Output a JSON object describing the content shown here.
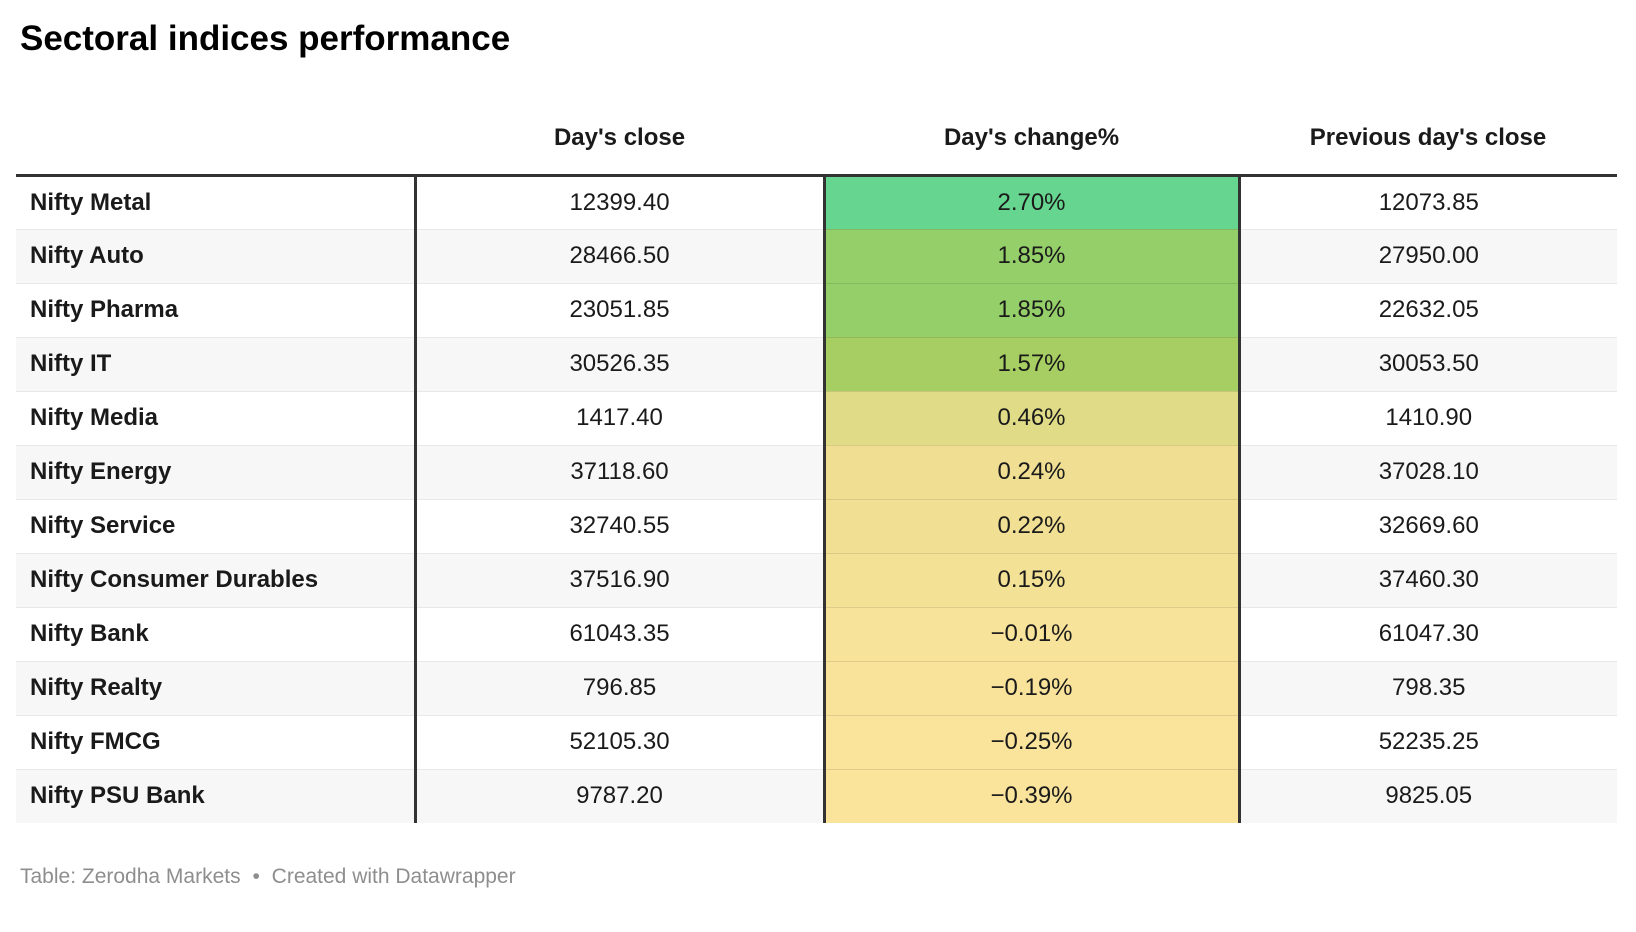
{
  "title": "Sectoral indices performance",
  "table": {
    "headers": [
      "",
      "Day's close",
      "Day's change%",
      "Previous day's close"
    ],
    "rows": [
      {
        "name": "Nifty Metal",
        "close": "12399.40",
        "change": "2.70%",
        "prev": "12073.85",
        "change_bg": "#66d58f"
      },
      {
        "name": "Nifty Auto",
        "close": "28466.50",
        "change": "1.85%",
        "prev": "27950.00",
        "change_bg": "#95cf6a"
      },
      {
        "name": "Nifty Pharma",
        "close": "23051.85",
        "change": "1.85%",
        "prev": "22632.05",
        "change_bg": "#94cf69"
      },
      {
        "name": "Nifty IT",
        "close": "30526.35",
        "change": "1.57%",
        "prev": "30053.50",
        "change_bg": "#a6ce62"
      },
      {
        "name": "Nifty Media",
        "close": "1417.40",
        "change": "0.46%",
        "prev": "1410.90",
        "change_bg": "#dfdb87"
      },
      {
        "name": "Nifty Energy",
        "close": "37118.60",
        "change": "0.24%",
        "prev": "37028.10",
        "change_bg": "#f0df92"
      },
      {
        "name": "Nifty Service",
        "close": "32740.55",
        "change": "0.22%",
        "prev": "32669.60",
        "change_bg": "#f1e094"
      },
      {
        "name": "Nifty Consumer Durables",
        "close": "37516.90",
        "change": "0.15%",
        "prev": "37460.30",
        "change_bg": "#f3e196"
      },
      {
        "name": "Nifty Bank",
        "close": "61043.35",
        "change": "−0.01%",
        "prev": "61047.30",
        "change_bg": "#f8e39a"
      },
      {
        "name": "Nifty Realty",
        "close": "796.85",
        "change": "−0.19%",
        "prev": "798.35",
        "change_bg": "#f9e39b"
      },
      {
        "name": "Nifty FMCG",
        "close": "52105.30",
        "change": "−0.25%",
        "prev": "52235.25",
        "change_bg": "#fae49c"
      },
      {
        "name": "Nifty PSU Bank",
        "close": "9787.20",
        "change": "−0.39%",
        "prev": "9825.05",
        "change_bg": "#fae49c"
      }
    ]
  },
  "footer": {
    "source": "Table: Zerodha Markets",
    "separator": "•",
    "attribution": "Created with Datawrapper"
  },
  "colors": {
    "heavy_border": "#333333",
    "row_separator": "#e8e8e8",
    "alt_row_bg": "#f7f7f7",
    "text": "#1a1a1a",
    "footer_text": "#8e8e8e",
    "positive_max": "#66d58f",
    "negative_min": "#fae49c"
  },
  "chart_data": {
    "type": "table",
    "title": "Sectoral indices performance",
    "columns": [
      "",
      "Day's close",
      "Day's change%",
      "Previous day's close"
    ],
    "rows": [
      [
        "Nifty Metal",
        12399.4,
        2.7,
        12073.85
      ],
      [
        "Nifty Auto",
        28466.5,
        1.85,
        27950.0
      ],
      [
        "Nifty Pharma",
        23051.85,
        1.85,
        22632.05
      ],
      [
        "Nifty IT",
        30526.35,
        1.57,
        30053.5
      ],
      [
        "Nifty Media",
        1417.4,
        0.46,
        1410.9
      ],
      [
        "Nifty Energy",
        37118.6,
        0.24,
        37028.1
      ],
      [
        "Nifty Service",
        32740.55,
        0.22,
        32669.6
      ],
      [
        "Nifty Consumer Durables",
        37516.9,
        0.15,
        37460.3
      ],
      [
        "Nifty Bank",
        61043.35,
        -0.01,
        61047.3
      ],
      [
        "Nifty Realty",
        796.85,
        -0.19,
        798.35
      ],
      [
        "Nifty FMCG",
        52105.3,
        -0.25,
        52235.25
      ],
      [
        "Nifty PSU Bank",
        9787.2,
        -0.39,
        9825.05
      ]
    ],
    "legend": "Day's change% cells heat-colored: green = larger positive change, yellow = negative change",
    "source": "Table: Zerodha Markets",
    "tool": "Created with Datawrapper"
  }
}
